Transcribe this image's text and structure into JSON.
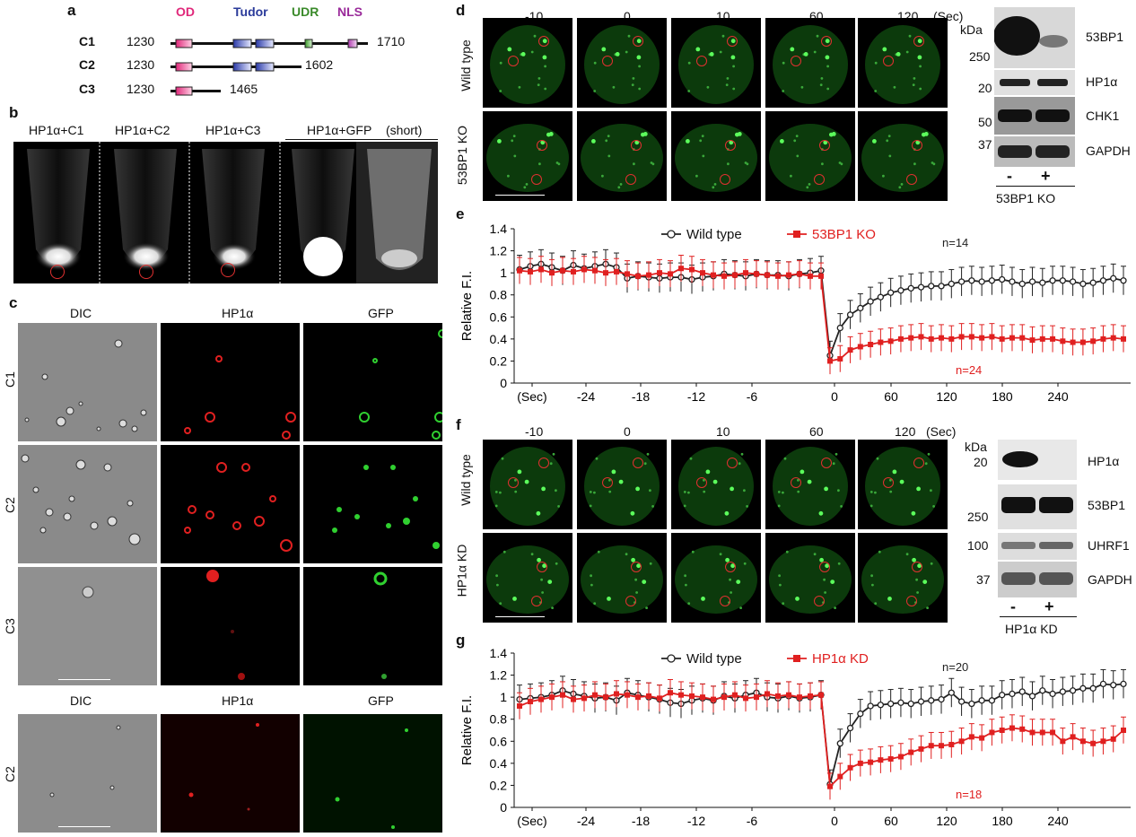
{
  "panel_labels": {
    "a": "a",
    "b": "b",
    "c": "c",
    "d": "d",
    "e": "e",
    "f": "f",
    "g": "g"
  },
  "panel_a": {
    "domains": {
      "od": "OD",
      "tudor": "Tudor",
      "udr": "UDR",
      "nls": "NLS"
    },
    "constructs": [
      {
        "name": "C1",
        "start": "1230",
        "end": "1710"
      },
      {
        "name": "C2",
        "start": "1230",
        "end": "1602"
      },
      {
        "name": "C3",
        "start": "1230",
        "end": "1465"
      }
    ],
    "colors": {
      "od": "#e0287a",
      "tudor": "#2a3a9a",
      "udr": "#3a8a2a",
      "nls": "#9a2a9a"
    }
  },
  "panel_b": {
    "labels": [
      "HP1α+C1",
      "HP1α+C2",
      "HP1α+C3",
      "HP1α+GFP"
    ],
    "short": "(short)"
  },
  "panel_c": {
    "headers": [
      "DIC",
      "HP1α",
      "GFP"
    ],
    "rows": [
      "C1",
      "C2",
      "C3",
      "C2"
    ]
  },
  "panel_d": {
    "times": [
      "-10",
      "0",
      "10",
      "60",
      "120"
    ],
    "unit": "(Sec)",
    "rows": [
      "Wild type",
      "53BP1 KO"
    ],
    "blot": {
      "kda_label": "kDa",
      "markers": [
        "250",
        "20",
        "50",
        "37"
      ],
      "proteins": [
        "53BP1",
        "HP1α",
        "CHK1",
        "GAPDH"
      ],
      "lanes": [
        "-",
        "+"
      ],
      "group": "53BP1 KO"
    }
  },
  "panel_f": {
    "times": [
      "-10",
      "0",
      "10",
      "60",
      "120"
    ],
    "unit": "(Sec)",
    "rows": [
      "Wild type",
      "HP1α KD"
    ],
    "blot": {
      "kda_label": "kDa",
      "markers": [
        "20",
        "250",
        "100",
        "37"
      ],
      "proteins": [
        "HP1α",
        "53BP1",
        "UHRF1",
        "GAPDH"
      ],
      "lanes": [
        "-",
        "+"
      ],
      "group": "HP1α KD"
    }
  },
  "chart_data": [
    {
      "type": "line",
      "id": "e",
      "ylabel": "Relative F.I.",
      "ylim": [
        0,
        1.4
      ],
      "yticks": [
        "0",
        "0.2",
        "0.4",
        "0.6",
        "0.8",
        "1",
        "1.2",
        "1.4"
      ],
      "xtick_labels": [
        "(Sec)",
        "-24",
        "-18",
        "-12",
        "-6",
        "0",
        "60",
        "120",
        "180",
        "240"
      ],
      "n_labels": {
        "black": "n=14",
        "red": "n=24"
      },
      "colors": {
        "black": "#222222",
        "red": "#e02020"
      },
      "series": [
        {
          "name": "Wild type",
          "marker": "open-circle",
          "color": "#222222",
          "pre": [
            1.03,
            1.06,
            1.08,
            1.05,
            1.02,
            1.07,
            1.04,
            1.06,
            1.08,
            1.05,
            0.95,
            0.97,
            0.96,
            0.95,
            0.96,
            0.96,
            0.94,
            0.96,
            0.97,
            0.99,
            0.98,
            0.97,
            0.99,
            0.98,
            0.98,
            0.97,
            0.99,
            1.0,
            1.02
          ],
          "post": [
            0.25,
            0.5,
            0.62,
            0.68,
            0.74,
            0.78,
            0.82,
            0.84,
            0.86,
            0.87,
            0.88,
            0.88,
            0.9,
            0.92,
            0.93,
            0.92,
            0.93,
            0.94,
            0.92,
            0.9,
            0.92,
            0.91,
            0.93,
            0.93,
            0.92,
            0.9,
            0.91,
            0.93,
            0.95,
            0.93
          ]
        },
        {
          "name": "53BP1 KO",
          "marker": "filled-square",
          "color": "#e02020",
          "pre": [
            1.02,
            1.01,
            1.03,
            1.0,
            1.02,
            1.01,
            1.03,
            1.02,
            1.0,
            1.01,
            0.99,
            0.97,
            0.98,
            1.0,
            0.99,
            1.04,
            1.03,
            1.0,
            0.98,
            0.97,
            0.98,
            1.0,
            0.99,
            0.98,
            0.97,
            0.98,
            0.99,
            0.97,
            0.97
          ],
          "post": [
            0.2,
            0.22,
            0.3,
            0.33,
            0.35,
            0.37,
            0.38,
            0.4,
            0.41,
            0.42,
            0.4,
            0.41,
            0.4,
            0.42,
            0.42,
            0.41,
            0.42,
            0.4,
            0.41,
            0.41,
            0.39,
            0.4,
            0.4,
            0.38,
            0.37,
            0.37,
            0.38,
            0.4,
            0.41,
            0.4
          ]
        }
      ]
    },
    {
      "type": "line",
      "id": "g",
      "ylabel": "Relative F.I.",
      "ylim": [
        0,
        1.4
      ],
      "yticks": [
        "0",
        "0.2",
        "0.4",
        "0.6",
        "0.8",
        "1",
        "1.2",
        "1.4"
      ],
      "xtick_labels": [
        "(Sec)",
        "-24",
        "-18",
        "-12",
        "-6",
        "0",
        "60",
        "120",
        "180",
        "240"
      ],
      "n_labels": {
        "black": "n=20",
        "red": "n=18"
      },
      "colors": {
        "black": "#222222",
        "red": "#e02020"
      },
      "series": [
        {
          "name": "Wild type",
          "marker": "open-circle",
          "color": "#222222",
          "pre": [
            0.98,
            0.99,
            1.0,
            1.02,
            1.06,
            1.03,
            1.01,
            0.99,
            1.0,
            0.97,
            1.04,
            1.02,
            1.0,
            0.98,
            0.95,
            0.94,
            0.97,
            0.99,
            0.97,
            1.01,
            0.99,
            1.02,
            1.04,
            1.0,
            0.99,
            1.01,
            0.99,
            1.0,
            1.02
          ],
          "post": [
            0.21,
            0.58,
            0.72,
            0.85,
            0.92,
            0.93,
            0.94,
            0.95,
            0.94,
            0.96,
            0.97,
            0.98,
            1.04,
            0.96,
            0.94,
            0.97,
            0.97,
            1.02,
            1.03,
            1.05,
            1.01,
            1.06,
            1.03,
            1.05,
            1.06,
            1.08,
            1.08,
            1.12,
            1.11,
            1.12
          ]
        },
        {
          "name": "HP1α KD",
          "marker": "filled-square",
          "color": "#e02020",
          "pre": [
            0.92,
            0.96,
            0.98,
            1.0,
            1.02,
            0.98,
            0.99,
            1.02,
            1.0,
            1.03,
            1.02,
            1.0,
            1.01,
            0.99,
            1.04,
            1.02,
            1.01,
            1.0,
            0.98,
            1.0,
            1.02,
            0.99,
            1.0,
            1.03,
            1.01,
            1.02,
            1.0,
            1.01,
            1.02
          ],
          "post": [
            0.19,
            0.28,
            0.36,
            0.4,
            0.41,
            0.43,
            0.44,
            0.46,
            0.5,
            0.53,
            0.56,
            0.56,
            0.57,
            0.6,
            0.64,
            0.63,
            0.68,
            0.7,
            0.72,
            0.71,
            0.68,
            0.68,
            0.68,
            0.6,
            0.64,
            0.6,
            0.58,
            0.6,
            0.62,
            0.7
          ]
        }
      ]
    }
  ]
}
